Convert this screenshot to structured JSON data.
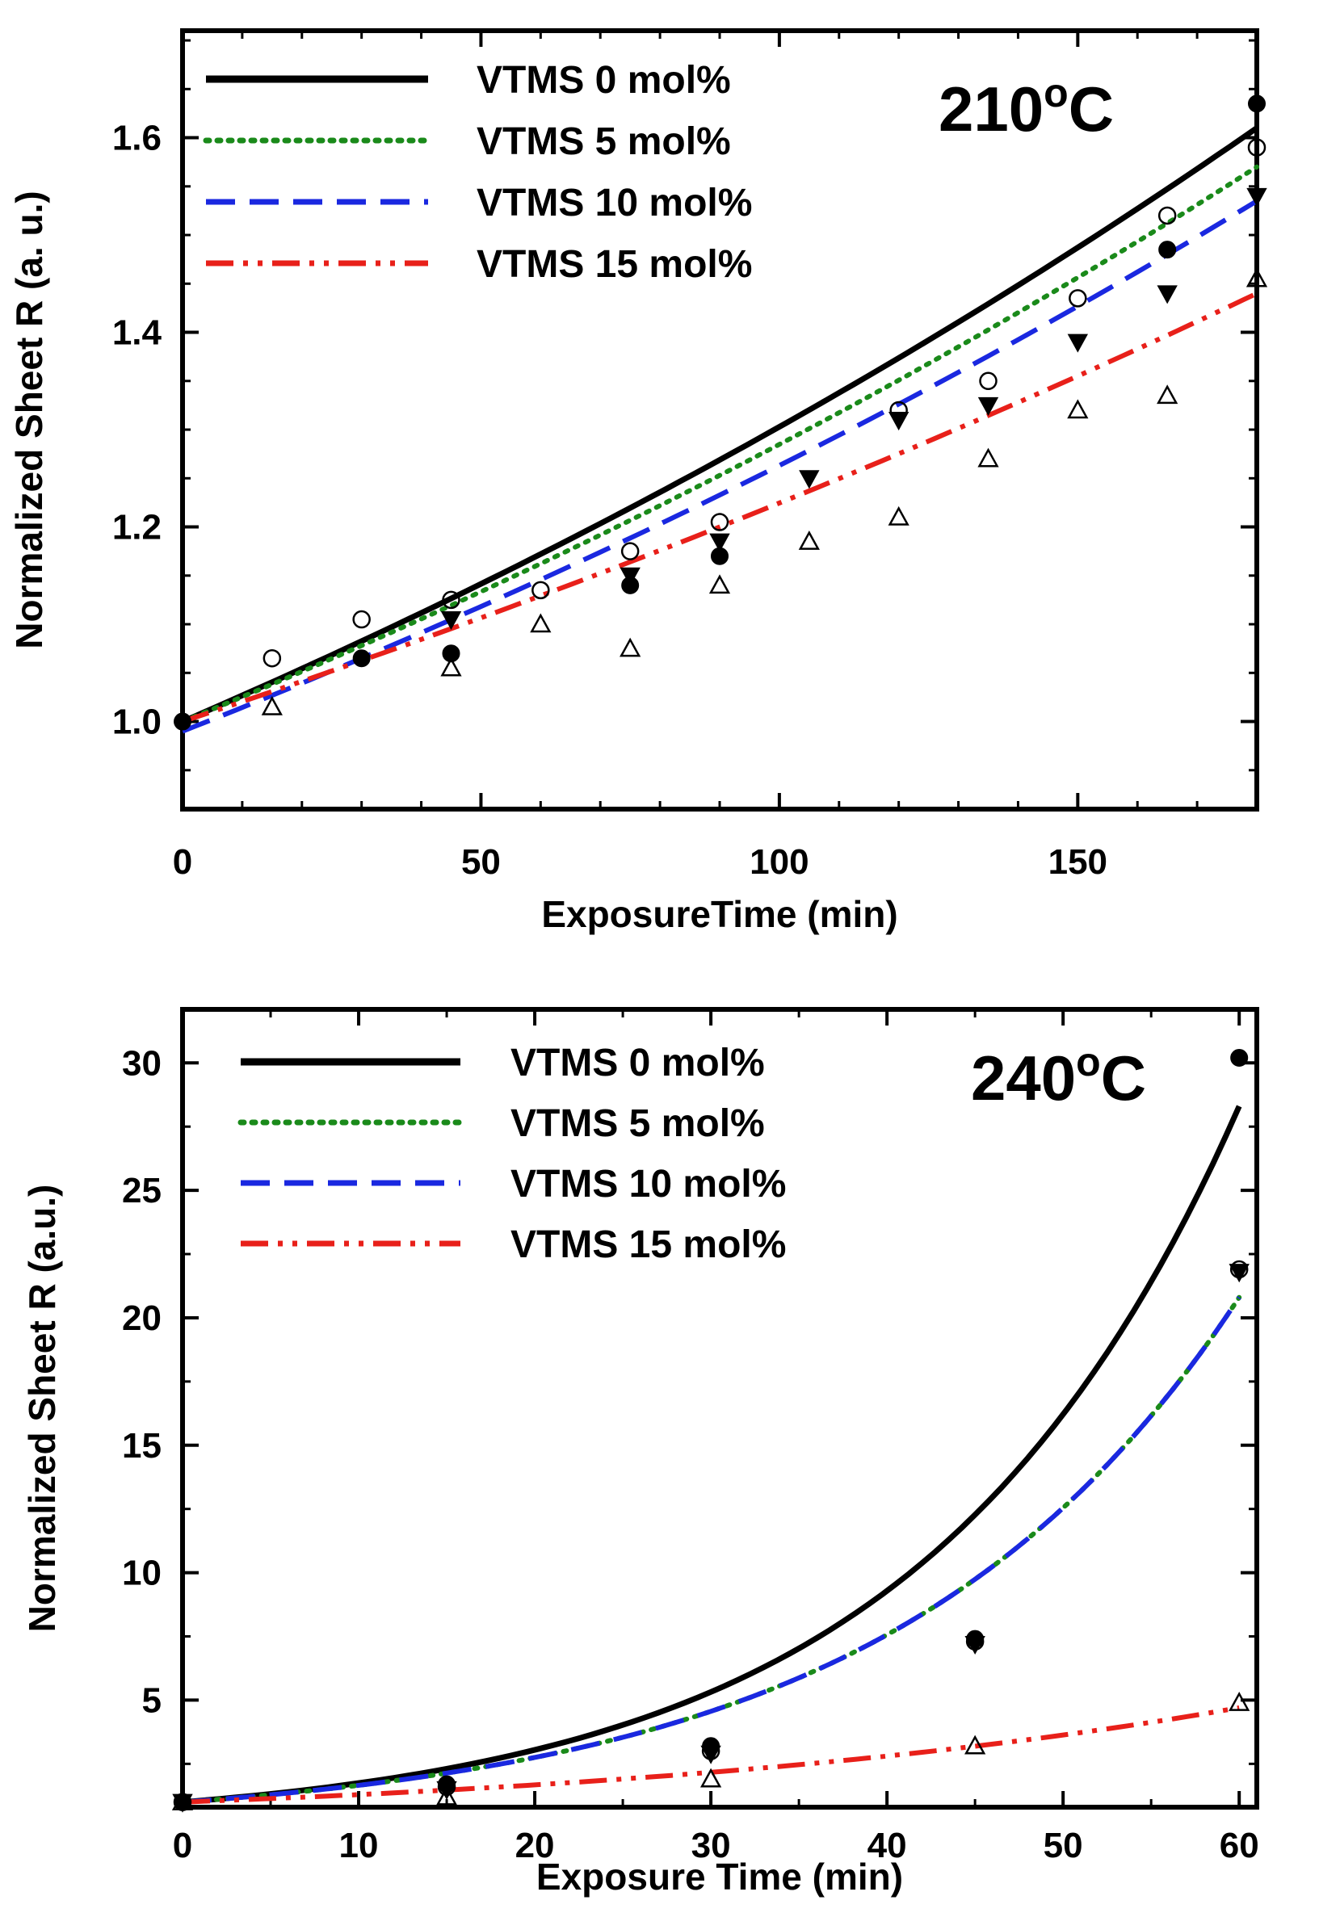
{
  "chart_data": [
    {
      "type": "scatter",
      "title": "210oC",
      "title_main": "210",
      "title_sup": "o",
      "title_unit": "C",
      "xlabel": "ExposureTime (min)",
      "ylabel": "Normalized Sheet R (a. u.)",
      "xlim": [
        0,
        180
      ],
      "ylim": [
        0.91,
        1.71
      ],
      "xticks": [
        0,
        50,
        100,
        150
      ],
      "xtick_labels": [
        "0",
        "50",
        "100",
        "150"
      ],
      "yticks": [
        1.0,
        1.2,
        1.4,
        1.6
      ],
      "ytick_labels": [
        "1.0",
        "1.2",
        "1.4",
        "1.6"
      ],
      "series": [
        {
          "name": "VTMS 0 mol%",
          "color": "#000000",
          "line_style": "solid",
          "marker": "filled-circle",
          "x": [
            0,
            30,
            45,
            75,
            90,
            165,
            180
          ],
          "values": [
            1.0,
            1.065,
            1.07,
            1.14,
            1.17,
            1.485,
            1.635
          ],
          "fit_x": [
            0,
            180
          ],
          "fit_y": [
            1.0,
            1.61
          ]
        },
        {
          "name": "VTMS 5 mol%",
          "color": "#1a8a1a",
          "line_style": "dotted",
          "marker": "open-circle",
          "x": [
            15,
            30,
            45,
            60,
            75,
            90,
            120,
            135,
            150,
            165,
            180
          ],
          "values": [
            1.065,
            1.105,
            1.125,
            1.135,
            1.175,
            1.205,
            1.32,
            1.35,
            1.435,
            1.52,
            1.59
          ],
          "fit_x": [
            0,
            180
          ],
          "fit_y": [
            1.0,
            1.57
          ]
        },
        {
          "name": "VTMS 10 mol%",
          "color": "#1a28e0",
          "line_style": "dashed",
          "marker": "filled-triangle-down",
          "x": [
            45,
            75,
            90,
            105,
            120,
            135,
            150,
            165,
            180
          ],
          "values": [
            1.105,
            1.15,
            1.185,
            1.25,
            1.31,
            1.325,
            1.39,
            1.44,
            1.54
          ],
          "fit_x": [
            0,
            180
          ],
          "fit_y": [
            0.99,
            1.535
          ]
        },
        {
          "name": "VTMS 15 mol%",
          "color": "#e8201a",
          "line_style": "dash-dot-dot",
          "marker": "open-triangle-up",
          "x": [
            15,
            45,
            60,
            75,
            90,
            105,
            120,
            135,
            150,
            165,
            180
          ],
          "values": [
            1.015,
            1.055,
            1.1,
            1.075,
            1.14,
            1.185,
            1.21,
            1.27,
            1.32,
            1.335,
            1.455
          ],
          "fit_x": [
            0,
            180
          ],
          "fit_y": [
            1.0,
            1.44
          ]
        }
      ]
    },
    {
      "type": "scatter",
      "title": "240oC",
      "title_main": "240",
      "title_sup": "o",
      "title_unit": "C",
      "xlabel": "Exposure Time (min)",
      "ylabel": "Normalized Sheet R (a.u.)",
      "xlim": [
        0,
        61
      ],
      "ylim": [
        0.8,
        32.1
      ],
      "xticks": [
        0,
        10,
        20,
        30,
        40,
        50,
        60
      ],
      "xtick_labels": [
        "0",
        "10",
        "20",
        "30",
        "40",
        "50",
        "60"
      ],
      "yticks": [
        5,
        10,
        15,
        20,
        25,
        30
      ],
      "ytick_labels": [
        "5",
        "10",
        "15",
        "20",
        "25",
        "30"
      ],
      "series": [
        {
          "name": "VTMS 0 mol%",
          "color": "#000000",
          "line_style": "solid",
          "marker": "filled-circle",
          "x": [
            0,
            15,
            30,
            45,
            60
          ],
          "values": [
            1.0,
            1.7,
            3.2,
            7.4,
            30.2
          ],
          "fit_x": [
            0,
            60
          ],
          "fit_y": [
            1.0,
            28.3
          ]
        },
        {
          "name": "VTMS 5 mol%",
          "color": "#1a8a1a",
          "line_style": "dotted",
          "marker": "open-circle",
          "x": [
            0,
            15,
            30,
            45,
            60
          ],
          "values": [
            1.0,
            1.6,
            3.0,
            7.3,
            21.9
          ],
          "fit_x": [
            0,
            60
          ],
          "fit_y": [
            1.0,
            20.8
          ]
        },
        {
          "name": "VTMS 10 mol%",
          "color": "#1a28e0",
          "line_style": "dashed",
          "marker": "filled-triangle-down",
          "x": [
            0,
            15,
            30,
            45,
            60
          ],
          "values": [
            1.0,
            1.5,
            2.9,
            7.2,
            21.8
          ],
          "fit_x": [
            0,
            60
          ],
          "fit_y": [
            1.0,
            20.8
          ]
        },
        {
          "name": "VTMS 15 mol%",
          "color": "#e8201a",
          "line_style": "dash-dot-dot",
          "marker": "open-triangle-up",
          "x": [
            0,
            15,
            30,
            45,
            60
          ],
          "values": [
            1.0,
            1.2,
            1.9,
            3.2,
            4.9
          ],
          "fit_x": [
            0,
            60
          ],
          "fit_y": [
            1.0,
            4.7
          ]
        }
      ]
    }
  ]
}
